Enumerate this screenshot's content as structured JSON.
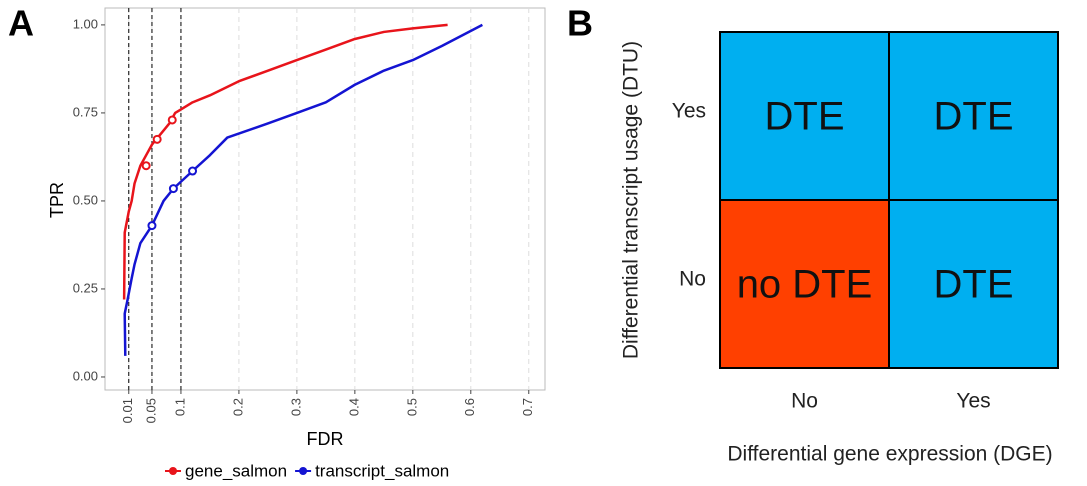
{
  "chart_data": {
    "type": "line",
    "panel_label": "A",
    "x_label": "FDR",
    "y_label": "TPR",
    "xlim": [
      -0.031,
      0.728
    ],
    "ylim": [
      -0.037,
      1.048
    ],
    "xticks": [
      0.01,
      0.05,
      0.1,
      0.2,
      0.3,
      0.4,
      0.5,
      0.6,
      0.7
    ],
    "yticks": [
      {
        "value": 0,
        "label": "0.00"
      },
      {
        "value": 0.25,
        "label": "0.25"
      },
      {
        "value": 0.5,
        "label": "0.50"
      },
      {
        "value": 0.75,
        "label": "0.75"
      },
      {
        "value": 1,
        "label": "1.00"
      }
    ],
    "cutoffs": [
      0.01,
      0.05,
      0.1
    ],
    "grid": true,
    "legend": "bottom",
    "series": [
      {
        "name": "gene_salmon",
        "color": "#e8141b",
        "x": [
          0.002,
          0.003,
          0.01,
          0.015,
          0.02,
          0.03,
          0.04,
          0.05,
          0.06,
          0.08,
          0.09,
          0.1,
          0.12,
          0.15,
          0.2,
          0.25,
          0.3,
          0.35,
          0.4,
          0.45,
          0.5,
          0.56
        ],
        "values": [
          0.22,
          0.41,
          0.47,
          0.5,
          0.55,
          0.6,
          0.63,
          0.66,
          0.68,
          0.72,
          0.75,
          0.76,
          0.78,
          0.8,
          0.84,
          0.87,
          0.9,
          0.93,
          0.96,
          0.98,
          0.99,
          1.0
        ],
        "markers": {
          "x": [
            0.04,
            0.059,
            0.085
          ],
          "y": [
            0.6,
            0.675,
            0.73
          ]
        }
      },
      {
        "name": "transcript_salmon",
        "color": "#1414d2",
        "x": [
          0.004,
          0.003,
          0.008,
          0.015,
          0.02,
          0.03,
          0.05,
          0.07,
          0.087,
          0.12,
          0.15,
          0.18,
          0.25,
          0.3,
          0.35,
          0.4,
          0.45,
          0.5,
          0.55,
          0.62
        ],
        "values": [
          0.06,
          0.18,
          0.22,
          0.28,
          0.32,
          0.38,
          0.43,
          0.5,
          0.535,
          0.585,
          0.63,
          0.68,
          0.72,
          0.75,
          0.78,
          0.83,
          0.87,
          0.9,
          0.94,
          1.0
        ],
        "markers": {
          "x": [
            0.05,
            0.087,
            0.12
          ],
          "y": [
            0.43,
            0.535,
            0.585
          ]
        }
      }
    ]
  },
  "diagram": {
    "panel_label": "B",
    "y_title": "Differential transcript usage (DTU)",
    "x_title": "Differential gene expression (DGE)",
    "rows": [
      "Yes",
      "No"
    ],
    "cols": [
      "No",
      "Yes"
    ],
    "cells": [
      [
        "DTE",
        "DTE"
      ],
      [
        "no DTE",
        "DTE"
      ]
    ],
    "cell_colors": [
      [
        "#00aff0",
        "#00aff0"
      ],
      [
        "#ff4000",
        "#00aff0"
      ]
    ]
  }
}
